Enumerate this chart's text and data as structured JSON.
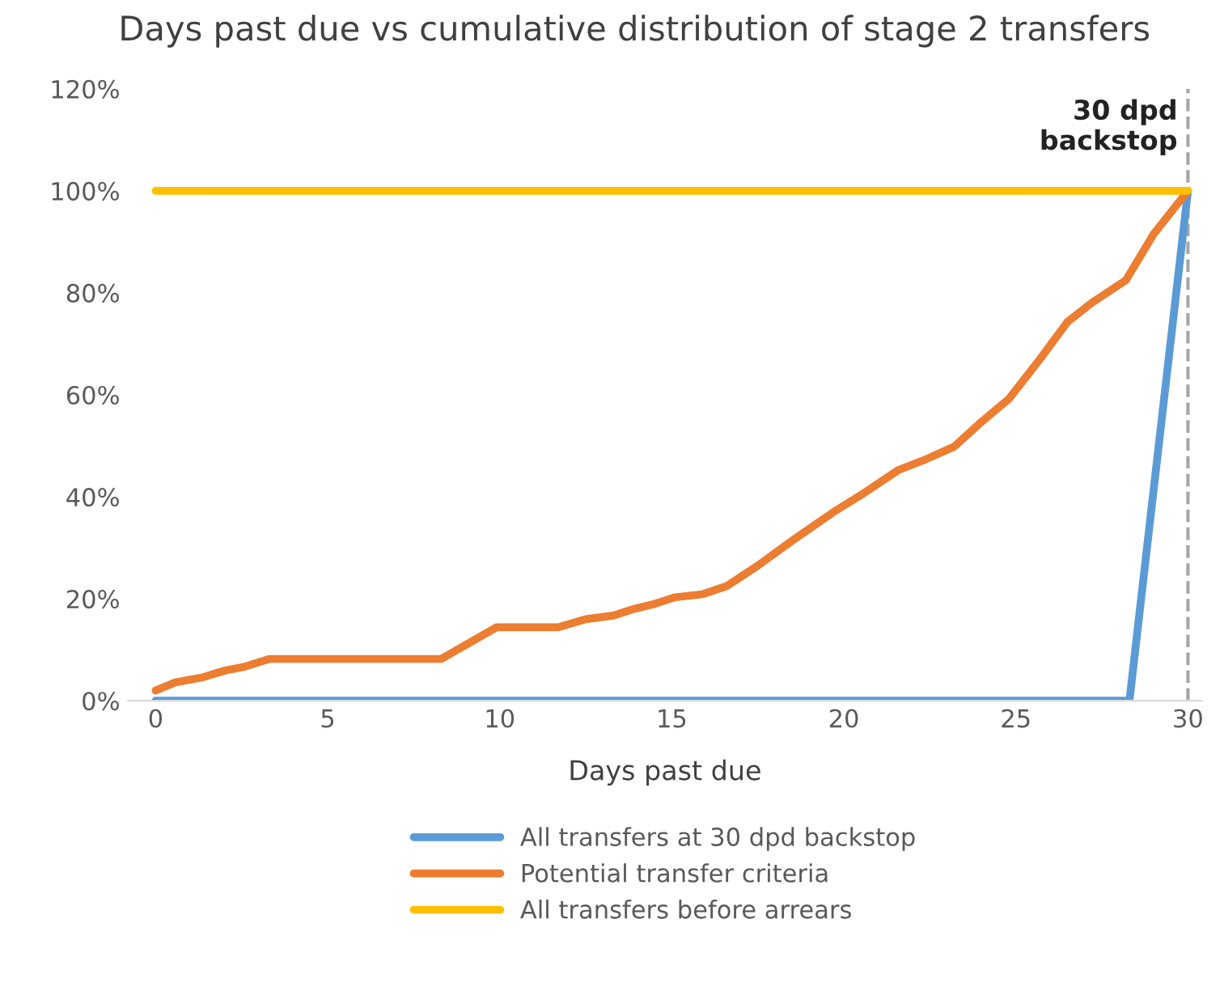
{
  "chart_data": {
    "type": "line",
    "title": "Days past due vs cumulative distribution of stage 2 transfers",
    "xlabel": "Days past due",
    "xlim": [
      -0.8,
      30.4
    ],
    "xticks": [
      0,
      5,
      10,
      15,
      20,
      25,
      30
    ],
    "ylim": [
      0,
      120
    ],
    "yticks": [
      {
        "value": 0,
        "label": "0%"
      },
      {
        "value": 20,
        "label": "20%"
      },
      {
        "value": 40,
        "label": "40%"
      },
      {
        "value": 60,
        "label": "60%"
      },
      {
        "value": 80,
        "label": "80%"
      },
      {
        "value": 100,
        "label": "100%"
      },
      {
        "value": 120,
        "label": "120%"
      }
    ],
    "grid": false,
    "legend": "bottom",
    "marker": "none",
    "line_style": "solid",
    "series": [
      {
        "name": "All transfers at 30 dpd backstop",
        "color": "#5b9bd5",
        "x": [
          0,
          28.3,
          30
        ],
        "values": [
          0,
          0,
          100
        ]
      },
      {
        "name": "Potential transfer criteria",
        "color": "#ed7d31",
        "x": [
          0,
          0.57,
          1.37,
          2,
          2.6,
          3.3,
          8.3,
          9.9,
          11.7,
          12.5,
          13.3,
          13.9,
          14.5,
          15.1,
          15.9,
          16.6,
          17.5,
          18.5,
          19.7,
          20.6,
          21.6,
          22.4,
          23.2,
          24,
          24.8,
          25.7,
          26.5,
          27.2,
          28.2,
          29,
          30
        ],
        "values": [
          2,
          3.6,
          4.6,
          5.9,
          6.7,
          8.2,
          8.2,
          14.4,
          14.4,
          16,
          16.7,
          18,
          19,
          20.3,
          20.9,
          22.5,
          26.5,
          31.4,
          37,
          40.8,
          45.3,
          47.4,
          49.8,
          54.7,
          59.2,
          67,
          74.3,
          78,
          82.5,
          91.5,
          100
        ]
      },
      {
        "name": "All transfers before arrears",
        "color": "#ffc000",
        "x": [
          0,
          30
        ],
        "values": [
          100,
          100
        ]
      }
    ],
    "ref_lines": [
      {
        "axis": "x",
        "value": 30,
        "label": "30 dpd\nbackstop",
        "color": "#a6a6a6",
        "line_style": "dashed"
      }
    ]
  }
}
